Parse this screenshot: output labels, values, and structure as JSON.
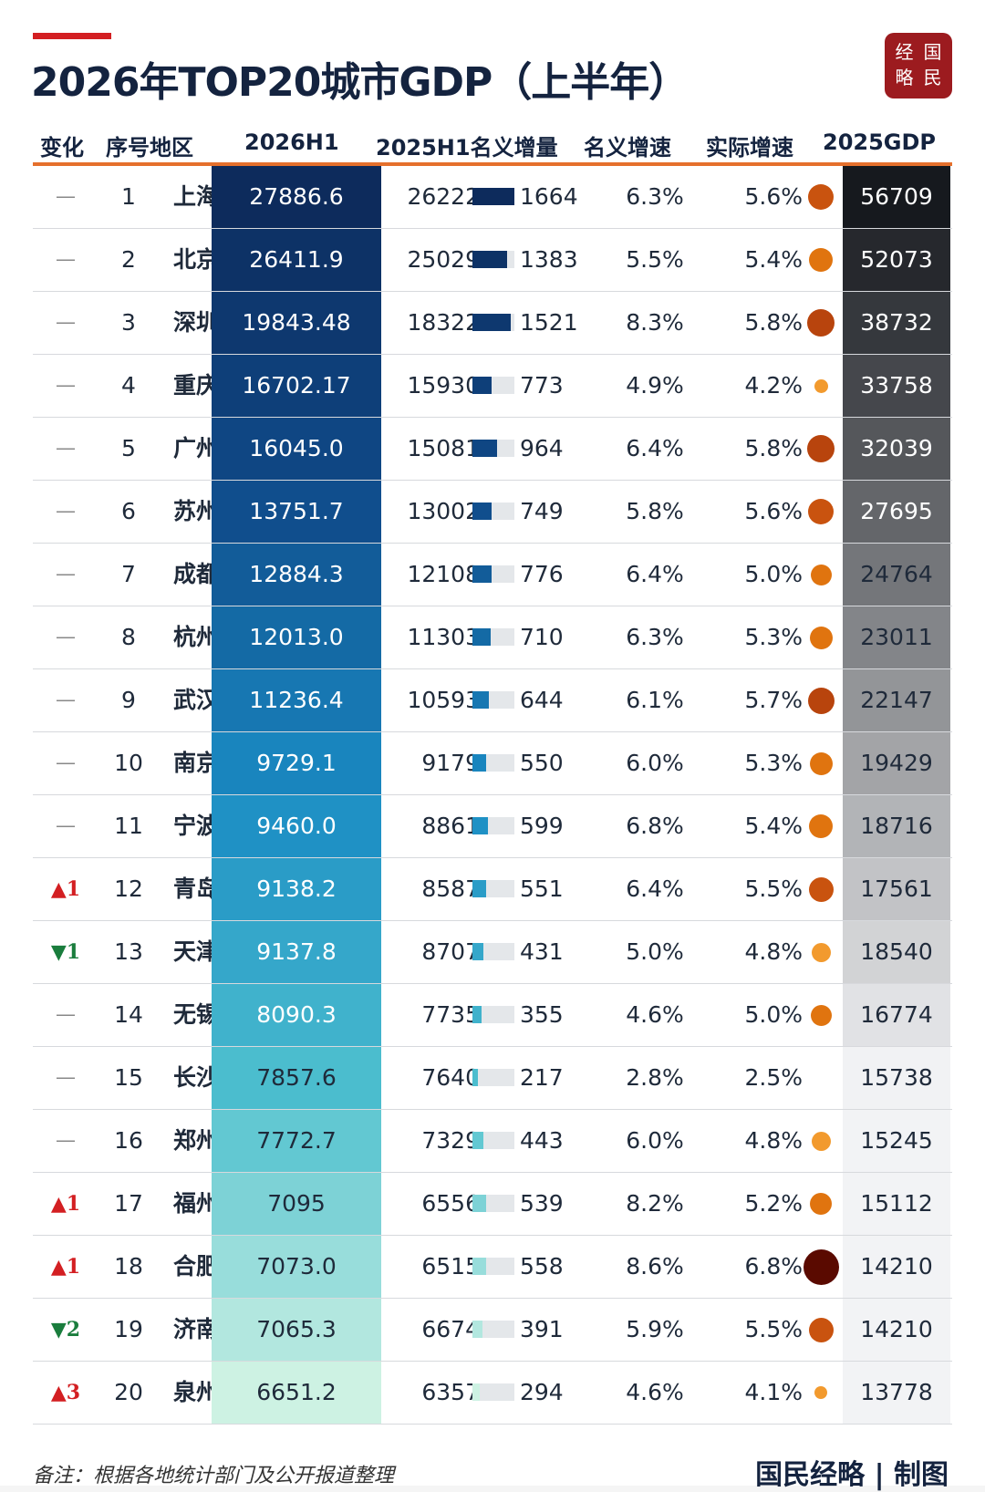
{
  "header": {
    "title": "2026年TOP20城市GDP（上半年）",
    "logo_chars": [
      "经",
      "国",
      "略",
      "民"
    ]
  },
  "columns": {
    "change": "变化",
    "rank_city": "序号地区",
    "h1_2026": "2026H1",
    "prev_increase": "2025H1名义增量",
    "nominal": "名义增速",
    "real": "实际增速",
    "gdp_2025": "2025GDP"
  },
  "footer": {
    "note": "备注：根据各地统计部门及公开报道整理",
    "brand": "国民经略 | 制图"
  },
  "colors": {
    "accent": "#d31f22",
    "orange_rule": "#e5702c",
    "up": "#d31f22",
    "down": "#1a7d3d",
    "h1_gradient_start": "#0d2b5c",
    "h1_gradient_end": "#cdeede",
    "gdp_gradient_start": "#16191e",
    "gdp_gradient_end": "#f2f3f5"
  },
  "chart_data": {
    "type": "table",
    "title": "2026年TOP20城市GDP（上半年）",
    "rows": [
      {
        "change": "—",
        "rank": "1",
        "city": "上海",
        "h1_2026": "27886.6",
        "h1_2025": "26222",
        "increase": "1664",
        "nominal": "6.3%",
        "real": "5.6%",
        "gdp_2025": "56709",
        "real_value": 5.6
      },
      {
        "change": "—",
        "rank": "2",
        "city": "北京",
        "h1_2026": "26411.9",
        "h1_2025": "25029",
        "increase": "1383",
        "nominal": "5.5%",
        "real": "5.4%",
        "gdp_2025": "52073",
        "real_value": 5.4
      },
      {
        "change": "—",
        "rank": "3",
        "city": "深圳",
        "h1_2026": "19843.48",
        "h1_2025": "18322",
        "increase": "1521",
        "nominal": "8.3%",
        "real": "5.8%",
        "gdp_2025": "38732",
        "real_value": 5.8
      },
      {
        "change": "—",
        "rank": "4",
        "city": "重庆",
        "h1_2026": "16702.17",
        "h1_2025": "15930",
        "increase": "773",
        "nominal": "4.9%",
        "real": "4.2%",
        "gdp_2025": "33758",
        "real_value": 4.2
      },
      {
        "change": "—",
        "rank": "5",
        "city": "广州",
        "h1_2026": "16045.0",
        "h1_2025": "15081",
        "increase": "964",
        "nominal": "6.4%",
        "real": "5.8%",
        "gdp_2025": "32039",
        "real_value": 5.8
      },
      {
        "change": "—",
        "rank": "6",
        "city": "苏州",
        "h1_2026": "13751.7",
        "h1_2025": "13002",
        "increase": "749",
        "nominal": "5.8%",
        "real": "5.6%",
        "gdp_2025": "27695",
        "real_value": 5.6
      },
      {
        "change": "—",
        "rank": "7",
        "city": "成都",
        "h1_2026": "12884.3",
        "h1_2025": "12108",
        "increase": "776",
        "nominal": "6.4%",
        "real": "5.0%",
        "gdp_2025": "24764",
        "real_value": 5.0
      },
      {
        "change": "—",
        "rank": "8",
        "city": "杭州",
        "h1_2026": "12013.0",
        "h1_2025": "11303",
        "increase": "710",
        "nominal": "6.3%",
        "real": "5.3%",
        "gdp_2025": "23011",
        "real_value": 5.3
      },
      {
        "change": "—",
        "rank": "9",
        "city": "武汉",
        "h1_2026": "11236.4",
        "h1_2025": "10593",
        "increase": "644",
        "nominal": "6.1%",
        "real": "5.7%",
        "gdp_2025": "22147",
        "real_value": 5.7
      },
      {
        "change": "—",
        "rank": "10",
        "city": "南京",
        "h1_2026": "9729.1",
        "h1_2025": "9179",
        "increase": "550",
        "nominal": "6.0%",
        "real": "5.3%",
        "gdp_2025": "19429",
        "real_value": 5.3
      },
      {
        "change": "—",
        "rank": "11",
        "city": "宁波",
        "h1_2026": "9460.0",
        "h1_2025": "8861",
        "increase": "599",
        "nominal": "6.8%",
        "real": "5.4%",
        "gdp_2025": "18716",
        "real_value": 5.4
      },
      {
        "change": "▲1",
        "rank": "12",
        "city": "青岛",
        "h1_2026": "9138.2",
        "h1_2025": "8587",
        "increase": "551",
        "nominal": "6.4%",
        "real": "5.5%",
        "gdp_2025": "17561",
        "real_value": 5.5
      },
      {
        "change": "▼1",
        "rank": "13",
        "city": "天津",
        "h1_2026": "9137.8",
        "h1_2025": "8707",
        "increase": "431",
        "nominal": "5.0%",
        "real": "4.8%",
        "gdp_2025": "18540",
        "real_value": 4.8
      },
      {
        "change": "—",
        "rank": "14",
        "city": "无锡",
        "h1_2026": "8090.3",
        "h1_2025": "7735",
        "increase": "355",
        "nominal": "4.6%",
        "real": "5.0%",
        "gdp_2025": "16774",
        "real_value": 5.0
      },
      {
        "change": "—",
        "rank": "15",
        "city": "长沙",
        "h1_2026": "7857.6",
        "h1_2025": "7640",
        "increase": "217",
        "nominal": "2.8%",
        "real": "2.5%",
        "gdp_2025": "15738",
        "real_value": 2.5
      },
      {
        "change": "—",
        "rank": "16",
        "city": "郑州",
        "h1_2026": "7772.7",
        "h1_2025": "7329",
        "increase": "443",
        "nominal": "6.0%",
        "real": "4.8%",
        "gdp_2025": "15245",
        "real_value": 4.8
      },
      {
        "change": "▲1",
        "rank": "17",
        "city": "福州",
        "h1_2026": "7095",
        "h1_2025": "6556",
        "increase": "539",
        "nominal": "8.2%",
        "real": "5.2%",
        "gdp_2025": "15112",
        "real_value": 5.2
      },
      {
        "change": "▲1",
        "rank": "18",
        "city": "合肥",
        "h1_2026": "7073.0",
        "h1_2025": "6515",
        "increase": "558",
        "nominal": "8.6%",
        "real": "6.8%",
        "gdp_2025": "14210",
        "real_value": 6.8
      },
      {
        "change": "▼2",
        "rank": "19",
        "city": "济南",
        "h1_2026": "7065.3",
        "h1_2025": "6674",
        "increase": "391",
        "nominal": "5.9%",
        "real": "5.5%",
        "gdp_2025": "14210",
        "real_value": 5.5
      },
      {
        "change": "▲3",
        "rank": "20",
        "city": "泉州",
        "h1_2026": "6651.2",
        "h1_2025": "6357",
        "increase": "294",
        "nominal": "4.6%",
        "real": "4.1%",
        "gdp_2025": "13778",
        "real_value": 4.1
      }
    ]
  }
}
